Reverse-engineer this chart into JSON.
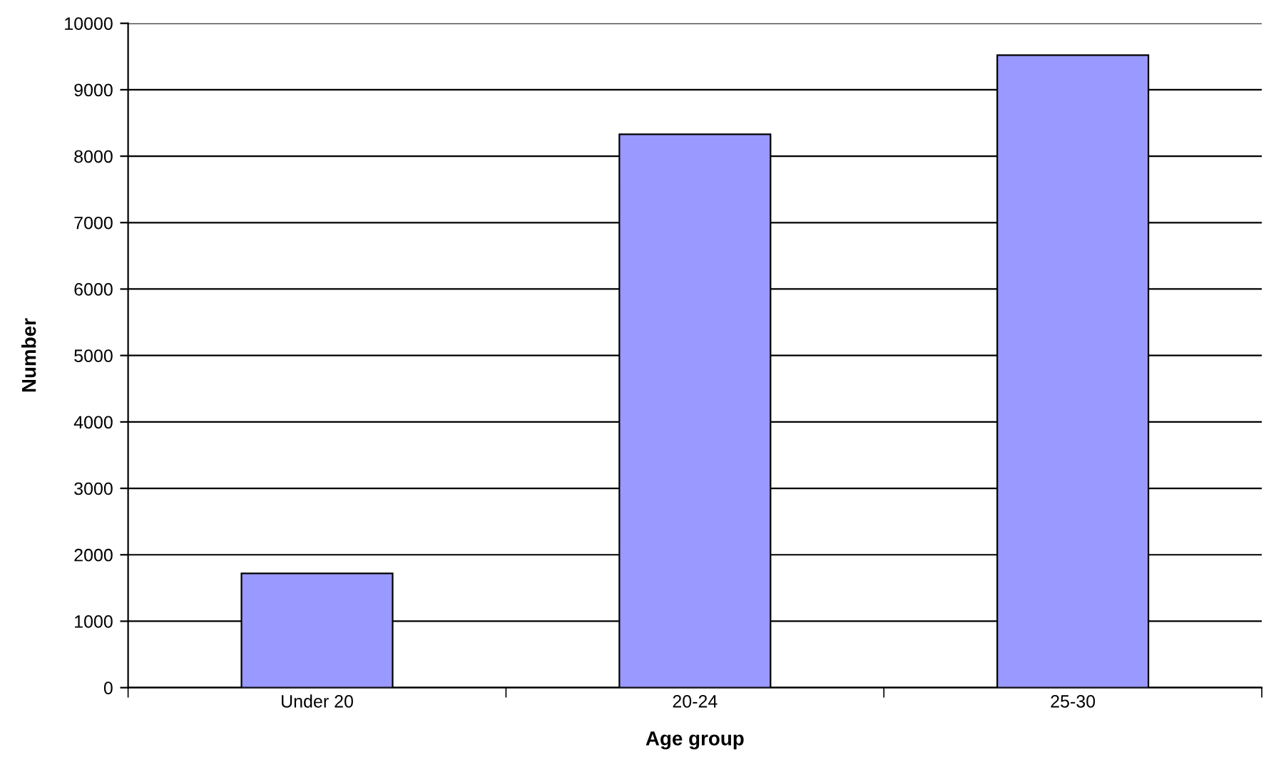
{
  "chart_data": {
    "type": "bar",
    "xlabel": "Age group",
    "ylabel": "Number",
    "categories": [
      "Under 20",
      "20-24",
      "25-30"
    ],
    "values": [
      1720,
      8330,
      9520
    ],
    "color": "#9999ff",
    "ylim": [
      0,
      10000
    ],
    "yticks": [
      0,
      1000,
      2000,
      3000,
      4000,
      5000,
      6000,
      7000,
      8000,
      9000,
      10000
    ],
    "grid": "y"
  }
}
